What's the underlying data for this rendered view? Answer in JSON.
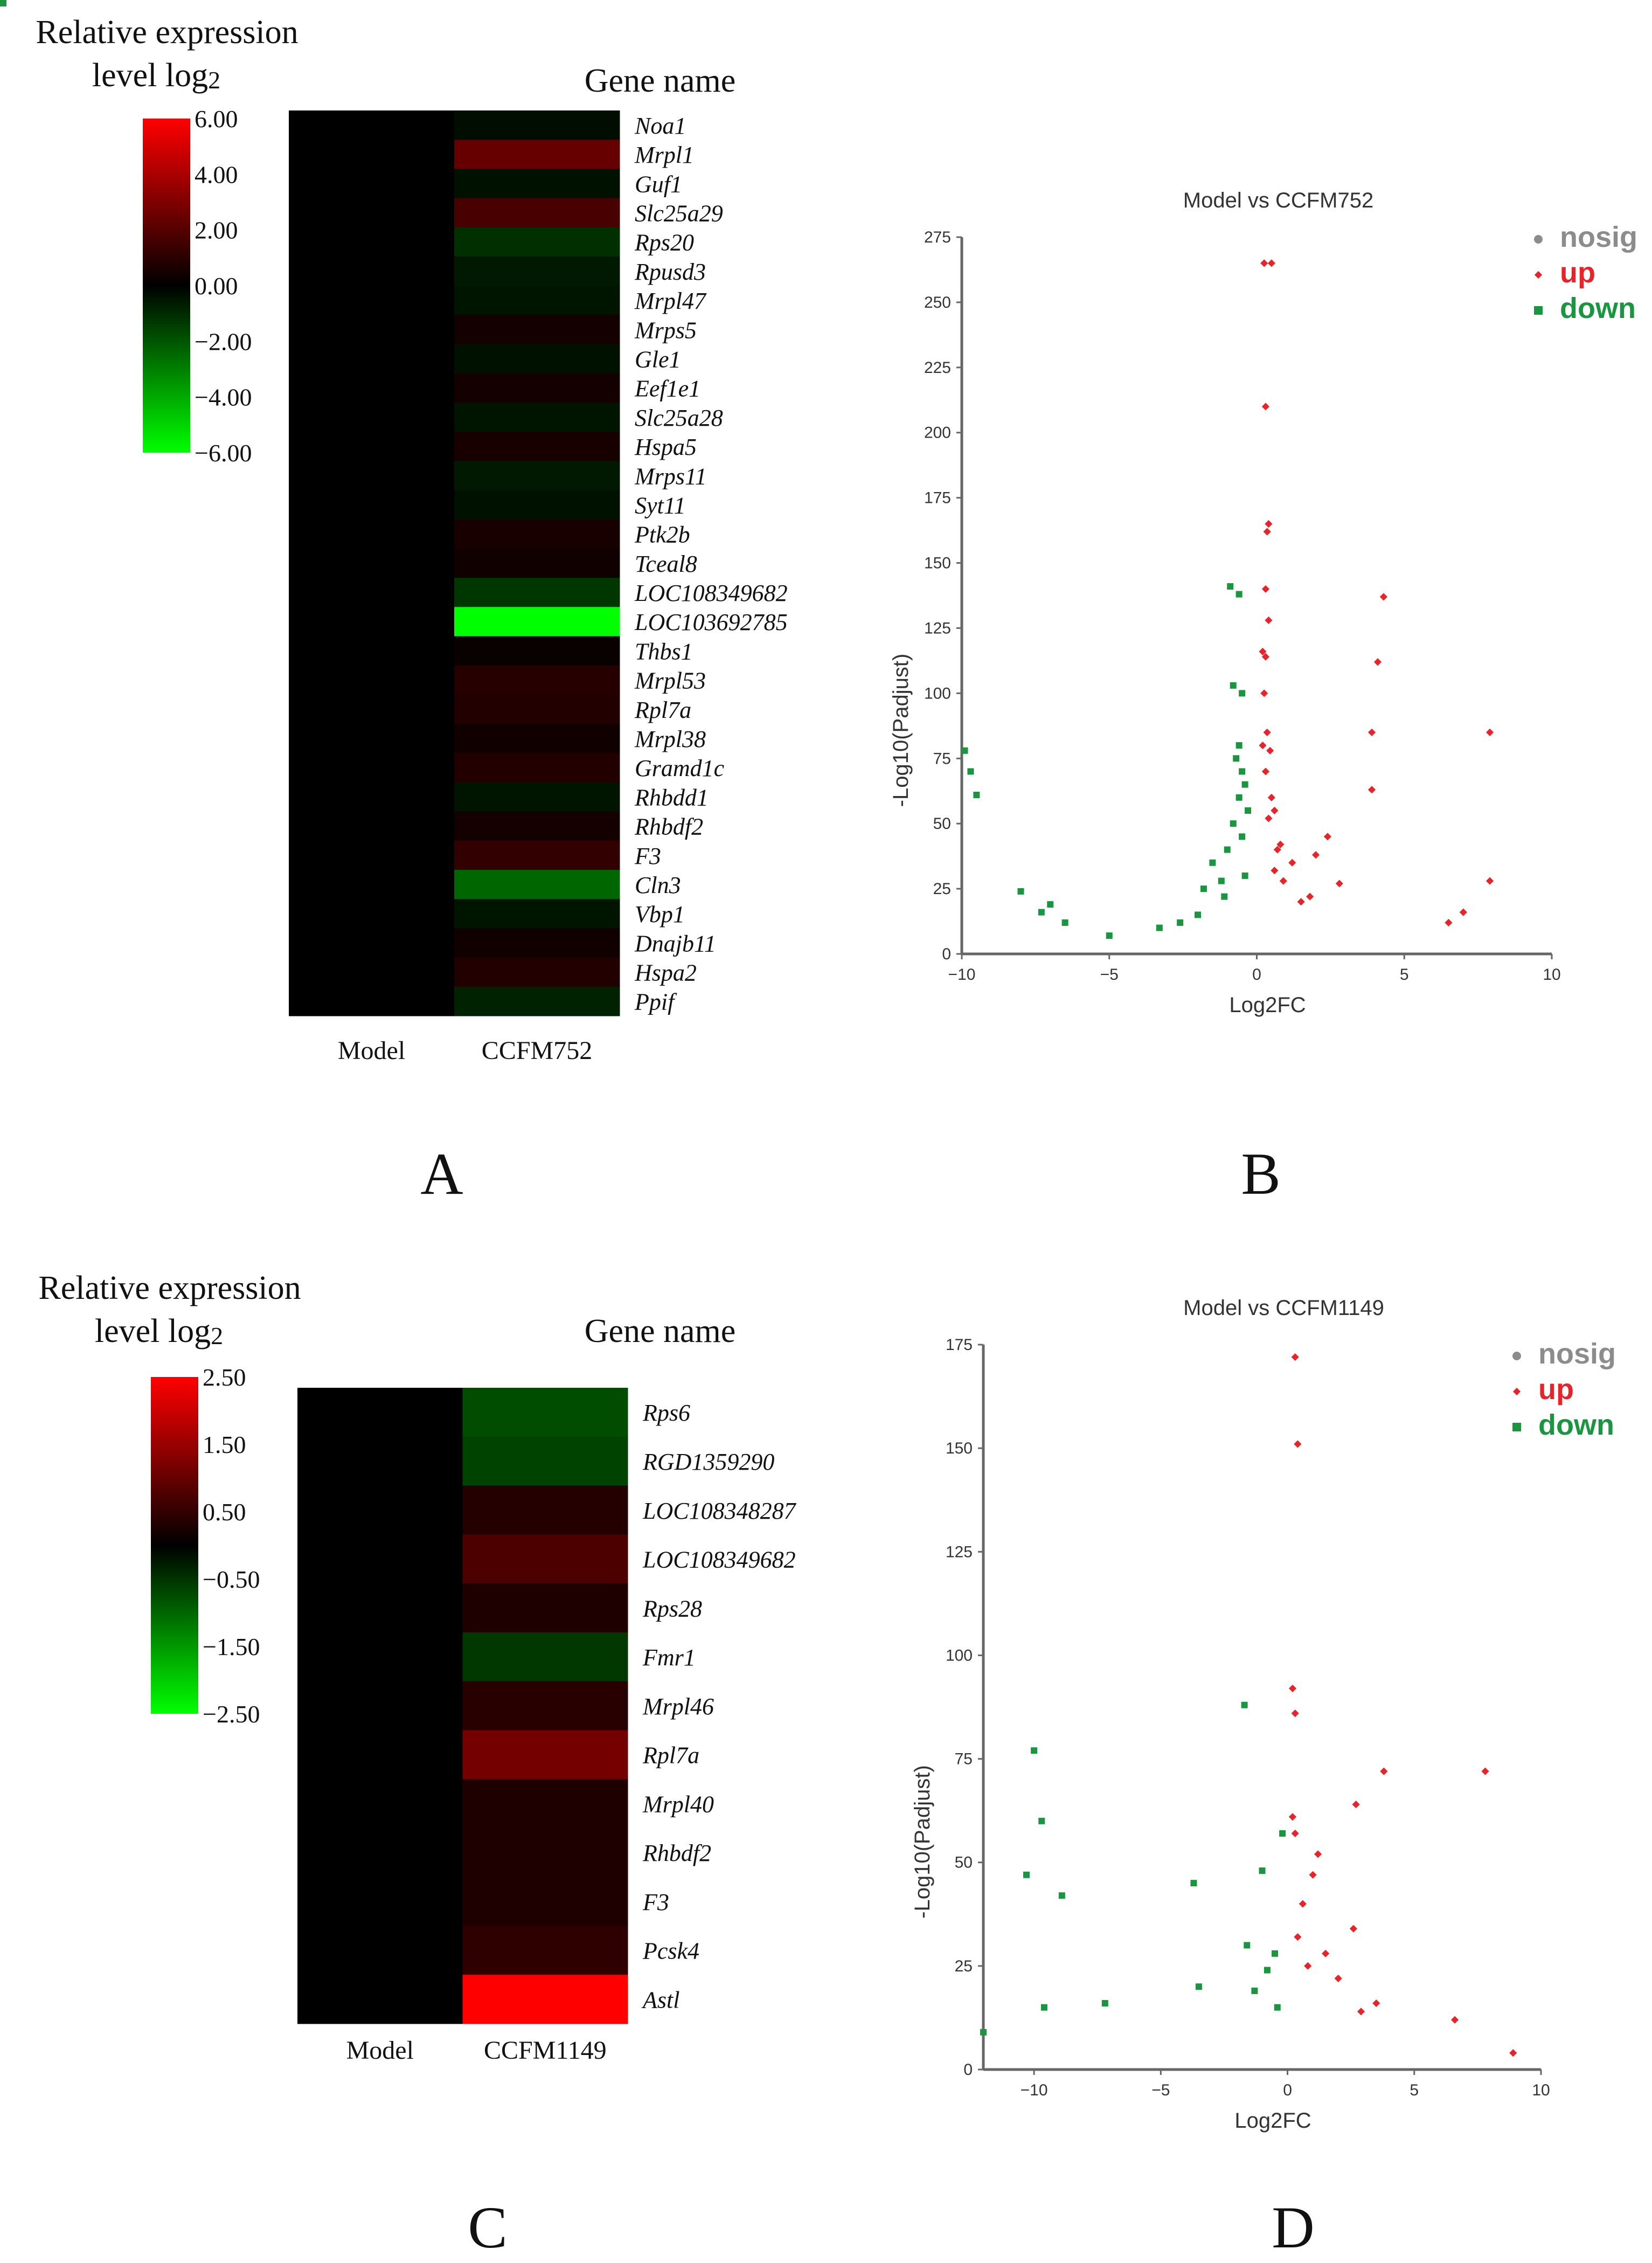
{
  "chart_data": [
    {
      "type": "heatmap",
      "panel_label": "A",
      "legend_title": [
        "Relative expression",
        "level log",
        "2"
      ],
      "column_header": "Gene name",
      "columns": [
        "Model",
        "CCFM752"
      ],
      "color_scale": {
        "min": -6,
        "max": 6,
        "low": "#00ff00",
        "mid": "#000000",
        "high": "#ff0000"
      },
      "legend_ticks": [
        "6.00",
        "4.00",
        "2.00",
        "0.00",
        "−2.00",
        "−4.00",
        "−6.00"
      ],
      "legend_values": [
        6,
        4,
        2,
        0,
        -2,
        -4,
        -6
      ],
      "genes": [
        "Noa1",
        "Mrpl1",
        "Guf1",
        "Slc25a29",
        "Rps20",
        "Rpusd3",
        "Mrpl47",
        "Mrps5",
        "Gle1",
        "Eef1e1",
        "Slc25a28",
        "Hspa5",
        "Mrps11",
        "Syt11",
        "Ptk2b",
        "Tceal8",
        "LOC108349682",
        "LOC103692785",
        "Thbs1",
        "Mrpl53",
        "Rpl7a",
        "Mrpl38",
        "Gramd1c",
        "Rhbdd1",
        "Rhbdf2",
        "F3",
        "Cln3",
        "Vbp1",
        "Dnajb11",
        "Hspa2",
        "Ppif"
      ],
      "model_values": [
        0,
        0,
        0,
        0,
        0,
        0,
        0,
        0,
        0,
        0,
        0,
        0,
        0,
        0,
        0,
        0,
        0,
        0,
        0,
        0,
        0,
        0,
        0,
        0,
        0,
        0,
        0,
        0,
        0,
        0,
        0
      ],
      "treatment_values": [
        -0.3,
        2.4,
        -0.4,
        1.7,
        -1.1,
        -0.6,
        -0.5,
        0.5,
        -0.4,
        0.5,
        -0.5,
        0.6,
        -0.6,
        -0.4,
        0.6,
        0.4,
        -1.3,
        -6.0,
        0.2,
        0.9,
        0.8,
        0.4,
        0.8,
        -0.5,
        0.5,
        1.2,
        -2.4,
        -0.5,
        0.4,
        0.8,
        -0.8
      ]
    },
    {
      "type": "scatter",
      "panel_label": "B",
      "title": "Model vs CCFM752",
      "xlabel": "Log2FC",
      "ylabel": "-Log10(Padjust)",
      "xlim": [
        -10,
        10
      ],
      "ylim": [
        0,
        275
      ],
      "xticks": [
        -10,
        -5,
        0,
        5,
        10
      ],
      "yticks": [
        0,
        25,
        50,
        75,
        100,
        125,
        150,
        175,
        200,
        225,
        250,
        275
      ],
      "legend": [
        {
          "label": "nosig",
          "color": "#8c8c8c",
          "marker": "circle"
        },
        {
          "label": "up",
          "color": "#e8242b",
          "marker": "diamond"
        },
        {
          "label": "down",
          "color": "#1a9641",
          "marker": "square"
        }
      ],
      "series": [
        {
          "name": "up",
          "color": "#e8242b",
          "points": [
            [
              0.25,
              265
            ],
            [
              0.5,
              265
            ],
            [
              0.3,
              210
            ],
            [
              0.4,
              165
            ],
            [
              0.35,
              162
            ],
            [
              0.3,
              140
            ],
            [
              0.4,
              128
            ],
            [
              0.2,
              116
            ],
            [
              0.3,
              114
            ],
            [
              0.25,
              100
            ],
            [
              0.35,
              85
            ],
            [
              0.2,
              80
            ],
            [
              0.45,
              78
            ],
            [
              0.3,
              70
            ],
            [
              0.5,
              60
            ],
            [
              0.6,
              55
            ],
            [
              0.4,
              52
            ],
            [
              0.8,
              42
            ],
            [
              1.2,
              35
            ],
            [
              2.0,
              38
            ],
            [
              2.4,
              45
            ],
            [
              2.8,
              27
            ],
            [
              4.3,
              137
            ],
            [
              4.1,
              112
            ],
            [
              3.9,
              85
            ],
            [
              3.9,
              63
            ],
            [
              7.9,
              85
            ],
            [
              7.9,
              28
            ],
            [
              7.0,
              16
            ],
            [
              6.5,
              12
            ],
            [
              1.5,
              20
            ],
            [
              1.8,
              22
            ],
            [
              0.6,
              32
            ],
            [
              0.9,
              28
            ],
            [
              0.7,
              40
            ]
          ]
        },
        {
          "name": "down",
          "color": "#1a9641",
          "points": [
            [
              -0.9,
              141
            ],
            [
              -0.6,
              138
            ],
            [
              -0.8,
              103
            ],
            [
              -0.5,
              100
            ],
            [
              -0.6,
              80
            ],
            [
              -0.7,
              75
            ],
            [
              -0.5,
              70
            ],
            [
              -0.4,
              65
            ],
            [
              -0.6,
              60
            ],
            [
              -0.3,
              55
            ],
            [
              -0.8,
              50
            ],
            [
              -0.5,
              45
            ],
            [
              -1.0,
              40
            ],
            [
              -1.5,
              35
            ],
            [
              -0.4,
              30
            ],
            [
              -1.2,
              28
            ],
            [
              -1.8,
              25
            ],
            [
              -1.1,
              22
            ],
            [
              -2.0,
              15
            ],
            [
              -2.6,
              12
            ],
            [
              -3.3,
              10
            ],
            [
              -9.9,
              78
            ],
            [
              -9.7,
              70
            ],
            [
              -9.5,
              61
            ],
            [
              -8.0,
              24
            ],
            [
              -7.0,
              19
            ],
            [
              -7.3,
              16
            ],
            [
              -6.5,
              12
            ],
            [
              -5.0,
              7
            ]
          ]
        }
      ]
    },
    {
      "type": "heatmap",
      "panel_label": "C",
      "legend_title": [
        "Relative expression",
        "level log",
        "2"
      ],
      "column_header": "Gene name",
      "columns": [
        "Model",
        "CCFM1149"
      ],
      "color_scale": {
        "min": -2.5,
        "max": 2.5,
        "low": "#00ff00",
        "mid": "#000000",
        "high": "#ff0000"
      },
      "legend_ticks": [
        "2.50",
        "1.50",
        "0.50",
        "−0.50",
        "−1.50",
        "−2.50"
      ],
      "legend_values": [
        2.5,
        1.5,
        0.5,
        -0.5,
        -1.5,
        -2.5
      ],
      "genes": [
        "Rps6",
        "RGD1359290",
        "LOC108348287",
        "LOC108349682",
        "Rps28",
        "Fmr1",
        "Mrpl46",
        "Rpl7a",
        "Mrpl40",
        "Rhbdf2",
        "F3",
        "Pcsk4",
        "Astl"
      ],
      "model_values": [
        0,
        0,
        0,
        0,
        0,
        0,
        0,
        0,
        0,
        0,
        0,
        0,
        0
      ],
      "treatment_values": [
        -0.75,
        -0.65,
        0.35,
        0.75,
        0.3,
        -0.55,
        0.4,
        1.15,
        0.3,
        0.3,
        0.3,
        0.45,
        2.5
      ]
    },
    {
      "type": "scatter",
      "panel_label": "D",
      "title": "Model vs CCFM1149",
      "xlabel": "Log2FC",
      "ylabel": "-Log10(Padjust)",
      "xlim": [
        -12,
        10
      ],
      "ylim": [
        0,
        175
      ],
      "xticks": [
        -10,
        -5,
        0,
        5,
        10
      ],
      "yticks": [
        0,
        25,
        50,
        75,
        100,
        125,
        150,
        175
      ],
      "legend": [
        {
          "label": "nosig",
          "color": "#8c8c8c",
          "marker": "circle"
        },
        {
          "label": "up",
          "color": "#e8242b",
          "marker": "diamond"
        },
        {
          "label": "down",
          "color": "#1a9641",
          "marker": "square"
        }
      ],
      "series": [
        {
          "name": "up",
          "color": "#e8242b",
          "points": [
            [
              0.3,
              172
            ],
            [
              0.4,
              151
            ],
            [
              0.2,
              92
            ],
            [
              0.3,
              86
            ],
            [
              0.2,
              61
            ],
            [
              0.3,
              57
            ],
            [
              1.2,
              52
            ],
            [
              1.0,
              47
            ],
            [
              0.6,
              40
            ],
            [
              0.4,
              32
            ],
            [
              1.5,
              28
            ],
            [
              2.7,
              64
            ],
            [
              3.8,
              72
            ],
            [
              7.8,
              72
            ],
            [
              2.6,
              34
            ],
            [
              2.0,
              22
            ],
            [
              2.9,
              14
            ],
            [
              3.5,
              16
            ],
            [
              6.6,
              12
            ],
            [
              8.9,
              4
            ],
            [
              0.8,
              25
            ]
          ]
        },
        {
          "name": "down",
          "color": "#1a9641",
          "points": [
            [
              -1.7,
              88
            ],
            [
              -10.0,
              77
            ],
            [
              -9.7,
              60
            ],
            [
              -10.3,
              47
            ],
            [
              -8.9,
              42
            ],
            [
              -3.7,
              45
            ],
            [
              -1.0,
              48
            ],
            [
              -0.2,
              57
            ],
            [
              -1.6,
              30
            ],
            [
              -0.5,
              28
            ],
            [
              -3.5,
              20
            ],
            [
              -1.3,
              19
            ],
            [
              -9.6,
              15
            ],
            [
              -12.0,
              9
            ],
            [
              -7.2,
              16
            ],
            [
              -0.8,
              24
            ],
            [
              -0.4,
              15
            ]
          ]
        }
      ]
    }
  ]
}
